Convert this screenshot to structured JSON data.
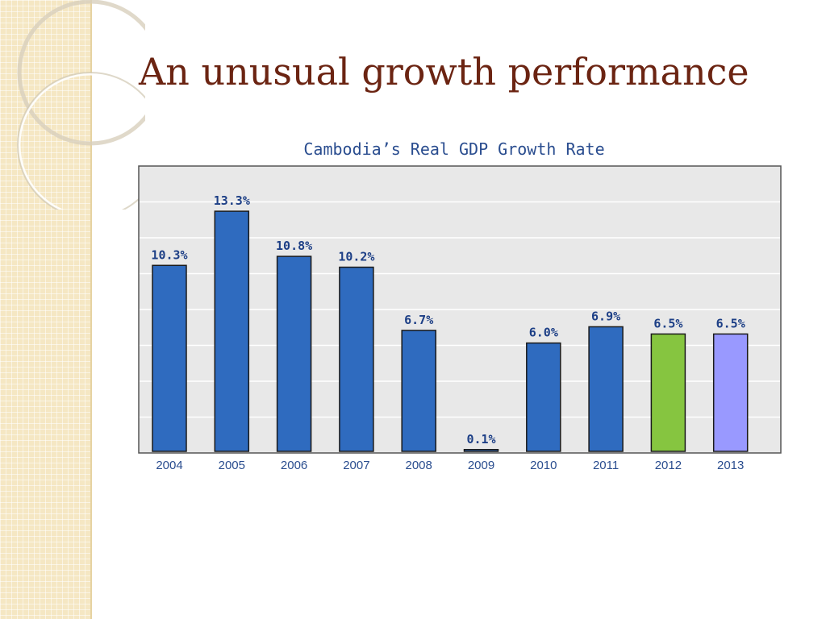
{
  "slide": {
    "title": "An unusual growth performance"
  },
  "colors": {
    "title_text": "#6b2412",
    "side_strip": "#f5e7c3",
    "plot_background": "#e8e8e8",
    "bar_default": "#2f6bbf",
    "bar_2012": "#86c540",
    "bar_2013": "#9999ff",
    "label_text": "#1d3f86"
  },
  "chart_data": {
    "type": "bar",
    "title": "Cambodia’s Real GDP Growth Rate",
    "xlabel": "",
    "ylabel": "",
    "ylim": [
      0,
      15
    ],
    "grid": true,
    "categories": [
      "2004",
      "2005",
      "2006",
      "2007",
      "2008",
      "2009",
      "2010",
      "2011",
      "2012",
      "2013"
    ],
    "values": [
      10.3,
      13.3,
      10.8,
      10.2,
      6.7,
      0.1,
      6.0,
      6.9,
      6.5,
      6.5
    ],
    "data_labels": [
      "10.3%",
      "13.3%",
      "10.8%",
      "10.2%",
      "6.7%",
      "0.1%",
      "6.0%",
      "6.9%",
      "6.5%",
      "6.5%"
    ],
    "bar_colors": [
      "#2f6bbf",
      "#2f6bbf",
      "#2f6bbf",
      "#2f6bbf",
      "#2f6bbf",
      "#2f6bbf",
      "#2f6bbf",
      "#2f6bbf",
      "#86c540",
      "#9999ff"
    ]
  }
}
